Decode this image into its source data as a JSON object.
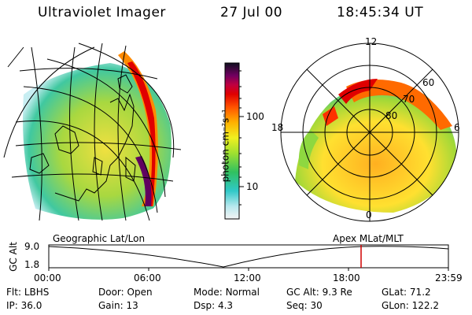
{
  "header": {
    "title": "Ultraviolet Imager",
    "date": "27 Jul 00",
    "time": "18:45:34 UT"
  },
  "colorbar": {
    "unit_label": "photon cm⁻²s⁻¹",
    "scale": "log",
    "tick_100": "100",
    "tick_10": "10"
  },
  "left_image": {
    "caption": "Geographic Lat/Lon"
  },
  "right_image": {
    "caption": "Apex MLat/MLT",
    "mlt_12": "12",
    "mlt_18": "18",
    "mlt_6": "6",
    "mlt_0": "0",
    "lat_60": "60",
    "lat_70": "70",
    "lat_80": "80"
  },
  "altitude_plot": {
    "ylabel": "GC Alt",
    "y_ticks": [
      "9.0",
      "1.8"
    ],
    "x_ticks": [
      "00:00",
      "06:00",
      "12:00",
      "18:00",
      "23:59"
    ],
    "current_marker_time": "18:45",
    "marker_color": "#d00000"
  },
  "status": {
    "row1": [
      {
        "label": "Flt:",
        "value": "LBHS"
      },
      {
        "label": "Door:",
        "value": "Open"
      },
      {
        "label": "Mode:",
        "value": "Normal"
      },
      {
        "label": "GC Alt:",
        "value": "9.3 Re"
      },
      {
        "label": "GLat:",
        "value": "71.2"
      }
    ],
    "row2": [
      {
        "label": "IP:",
        "value": "36.0"
      },
      {
        "label": "Gain:",
        "value": "13"
      },
      {
        "label": "Dsp:",
        "value": "4.3"
      },
      {
        "label": "Seq:",
        "value": "30"
      },
      {
        "label": "GLon:",
        "value": "122.2"
      }
    ]
  }
}
